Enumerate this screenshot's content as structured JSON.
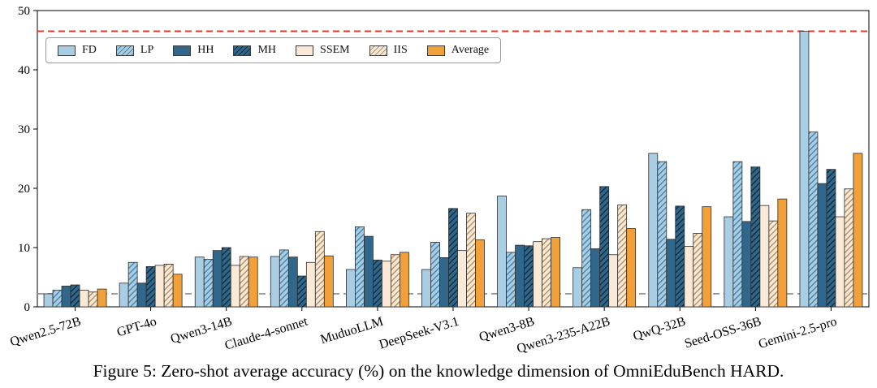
{
  "caption": "Figure 5: Zero-shot average accuracy (%) on the knowledge dimension of OmniEduBench HARD.",
  "chart_data": {
    "type": "bar",
    "title": "",
    "xlabel": "",
    "ylabel": "",
    "ylim": [
      0,
      50
    ],
    "yticks": [
      0,
      10,
      20,
      30,
      40,
      50
    ],
    "grid": false,
    "legend_position": "upper-left-inside",
    "categories": [
      "Qwen2.5-72B",
      "GPT-4o",
      "Qwen3-14B",
      "Claude-4-sonnet",
      "MuduoLLM",
      "DeepSeek-V3.1",
      "Qwen3-8B",
      "Qwen3-235-A22B",
      "QwQ-32B",
      "Seed-OSS-36B",
      "Gemini-2.5-pro"
    ],
    "series": [
      {
        "name": "FD",
        "color": "#a9cde3",
        "hatch": false,
        "hatch_color": "",
        "values": [
          2.2,
          4.0,
          8.4,
          8.5,
          6.3,
          6.3,
          18.7,
          6.6,
          25.9,
          15.2,
          46.5
        ]
      },
      {
        "name": "LP",
        "color": "#a9cde3",
        "hatch": true,
        "hatch_color": "#4d87ad",
        "values": [
          2.8,
          7.5,
          8.0,
          9.6,
          13.5,
          10.9,
          9.2,
          16.4,
          24.5,
          24.5,
          29.5
        ]
      },
      {
        "name": "HH",
        "color": "#31678a",
        "hatch": false,
        "hatch_color": "",
        "values": [
          3.5,
          4.0,
          9.5,
          8.4,
          11.9,
          8.3,
          10.4,
          9.8,
          11.4,
          14.4,
          20.8
        ]
      },
      {
        "name": "MH",
        "color": "#31678a",
        "hatch": true,
        "hatch_color": "#122f42",
        "values": [
          3.7,
          6.8,
          10.0,
          5.2,
          7.9,
          16.6,
          10.3,
          20.3,
          17.0,
          23.6,
          23.2
        ]
      },
      {
        "name": "SSEM",
        "color": "#f9e9d6",
        "hatch": false,
        "hatch_color": "",
        "values": [
          2.8,
          7.0,
          7.0,
          7.5,
          7.7,
          9.5,
          11.0,
          8.8,
          10.2,
          17.1,
          15.2
        ]
      },
      {
        "name": "IIS",
        "color": "#f9e9d6",
        "hatch": true,
        "hatch_color": "#b5946c",
        "values": [
          2.5,
          7.2,
          8.5,
          12.7,
          8.8,
          15.8,
          11.5,
          17.2,
          12.4,
          14.5,
          19.9
        ]
      },
      {
        "name": "Average",
        "color": "#f2a13a",
        "hatch": false,
        "hatch_color": "",
        "values": [
          3.0,
          5.5,
          8.4,
          8.6,
          9.2,
          11.3,
          11.7,
          13.2,
          16.9,
          18.2,
          25.9
        ]
      }
    ],
    "reference_lines": [
      {
        "label": "upper",
        "value": 46.5,
        "color": "#e8372e"
      },
      {
        "label": "lower",
        "value": 2.2,
        "color": "#8c8c8c"
      }
    ]
  }
}
